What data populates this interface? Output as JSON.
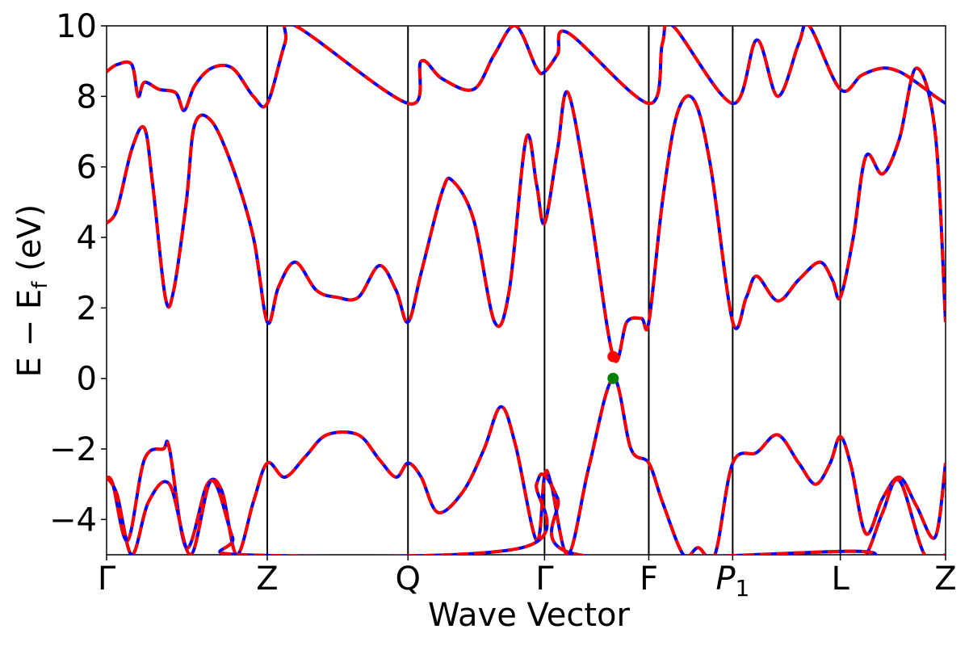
{
  "chart_data": {
    "type": "line",
    "title": "",
    "xlabel": "Wave Vector",
    "ylabel_parts": {
      "main": "E − E",
      "sub": "f",
      "unit": " (eV)"
    },
    "ylim": [
      -5,
      10
    ],
    "yticks": [
      -4,
      -2,
      0,
      2,
      4,
      6,
      8,
      10
    ],
    "ytick_labels": [
      "−4",
      "−2",
      "0",
      "2",
      "4",
      "6",
      "8",
      "10"
    ],
    "xlim": [
      0,
      4.0
    ],
    "kpoints": [
      {
        "label": "Γ",
        "sub": "",
        "italic": false,
        "x": 0.0
      },
      {
        "label": "Z",
        "sub": "",
        "italic": false,
        "x": 0.766
      },
      {
        "label": "Q",
        "sub": "",
        "italic": false,
        "x": 1.437
      },
      {
        "label": "Γ",
        "sub": "",
        "italic": false,
        "x": 2.088
      },
      {
        "label": "F",
        "sub": "",
        "italic": false,
        "x": 2.585
      },
      {
        "label": "P",
        "sub": "1",
        "italic": true,
        "x": 2.985
      },
      {
        "label": "L",
        "sub": "",
        "italic": false,
        "x": 3.498
      },
      {
        "label": "Z",
        "sub": "",
        "italic": false,
        "x": 4.0
      }
    ],
    "colors": {
      "series_a": "#ff0000",
      "series_b": "#0000ff",
      "vbm_marker": "#008000",
      "cbm_marker": "#ff0000",
      "kline": "#000000"
    },
    "markers": [
      {
        "name": "cbm",
        "x": 2.415,
        "y": 0.62
      },
      {
        "name": "vbm",
        "x": 2.415,
        "y": 0.0
      }
    ],
    "bands": [
      {
        "name": "v1",
        "points": [
          [
            0,
            -2.8
          ],
          [
            0.03,
            -3.0
          ],
          [
            0.1,
            -4.6
          ],
          [
            0.18,
            -2.3
          ],
          [
            0.27,
            -2.0
          ],
          [
            0.3,
            -2.0
          ],
          [
            0.38,
            -4.8
          ],
          [
            0.48,
            -3.0
          ],
          [
            0.55,
            -3.2
          ],
          [
            0.62,
            -5.0
          ],
          [
            0.7,
            -3.5
          ],
          [
            0.766,
            -2.4
          ],
          [
            0.85,
            -2.8
          ],
          [
            0.95,
            -2.2
          ],
          [
            1.05,
            -1.6
          ],
          [
            1.2,
            -1.6
          ],
          [
            1.3,
            -2.3
          ],
          [
            1.38,
            -2.8
          ],
          [
            1.437,
            -2.4
          ],
          [
            1.5,
            -2.8
          ],
          [
            1.58,
            -3.8
          ],
          [
            1.7,
            -3.2
          ],
          [
            1.8,
            -2.0
          ],
          [
            1.88,
            -0.8
          ],
          [
            1.95,
            -1.9
          ],
          [
            2.05,
            -4.6
          ],
          [
            2.088,
            -2.75
          ],
          [
            2.12,
            -3.0
          ],
          [
            2.2,
            -5.0
          ],
          [
            2.3,
            -2.5
          ],
          [
            2.415,
            0.0
          ],
          [
            2.5,
            -2.0
          ],
          [
            2.585,
            -2.4
          ],
          [
            2.65,
            -3.5
          ],
          [
            2.75,
            -5.0
          ],
          [
            2.82,
            -4.8
          ],
          [
            2.9,
            -5.0
          ],
          [
            2.985,
            -2.4
          ],
          [
            3.1,
            -2.1
          ],
          [
            3.2,
            -1.6
          ],
          [
            3.3,
            -2.4
          ],
          [
            3.38,
            -3.0
          ],
          [
            3.45,
            -2.4
          ],
          [
            3.498,
            -1.65
          ],
          [
            3.55,
            -2.5
          ],
          [
            3.62,
            -4.4
          ],
          [
            3.7,
            -3.4
          ],
          [
            3.78,
            -2.8
          ],
          [
            3.86,
            -3.6
          ],
          [
            3.95,
            -4.5
          ],
          [
            4.0,
            -2.4
          ]
        ]
      },
      {
        "name": "v2",
        "points": [
          [
            0,
            -2.8
          ],
          [
            0.05,
            -3.3
          ],
          [
            0.12,
            -5.0
          ],
          [
            0.2,
            -3.5
          ],
          [
            0.3,
            -3.0
          ],
          [
            0.4,
            -5.0
          ],
          [
            0.5,
            -2.9
          ],
          [
            0.6,
            -4.5
          ],
          [
            0.65,
            -5.0
          ],
          [
            1.98,
            -4.8
          ],
          [
            2.05,
            -3.0
          ],
          [
            2.088,
            -2.75
          ],
          [
            2.15,
            -3.4
          ],
          [
            2.25,
            -5.0
          ],
          [
            3.55,
            -4.9
          ],
          [
            3.62,
            -5.0
          ],
          [
            3.7,
            -3.8
          ],
          [
            3.78,
            -2.9
          ],
          [
            3.9,
            -5.0
          ],
          [
            4.0,
            -5.0
          ]
        ]
      },
      {
        "name": "c1",
        "points": [
          [
            0,
            4.4
          ],
          [
            0.05,
            4.8
          ],
          [
            0.12,
            6.5
          ],
          [
            0.18,
            7.1
          ],
          [
            0.22,
            5.5
          ],
          [
            0.28,
            2.3
          ],
          [
            0.32,
            2.5
          ],
          [
            0.38,
            5.0
          ],
          [
            0.42,
            7.2
          ],
          [
            0.5,
            7.3
          ],
          [
            0.6,
            6.0
          ],
          [
            0.7,
            4.0
          ],
          [
            0.766,
            1.6
          ],
          [
            0.82,
            2.6
          ],
          [
            0.9,
            3.3
          ],
          [
            1.0,
            2.5
          ],
          [
            1.1,
            2.3
          ],
          [
            1.2,
            2.3
          ],
          [
            1.3,
            3.2
          ],
          [
            1.38,
            2.5
          ],
          [
            1.437,
            1.6
          ],
          [
            1.5,
            3.0
          ],
          [
            1.6,
            5.3
          ],
          [
            1.65,
            5.6
          ],
          [
            1.75,
            4.5
          ],
          [
            1.85,
            1.6
          ],
          [
            1.92,
            2.5
          ],
          [
            2.0,
            6.8
          ],
          [
            2.05,
            5.5
          ],
          [
            2.088,
            4.4
          ],
          [
            2.15,
            6.5
          ],
          [
            2.2,
            8.1
          ],
          [
            2.3,
            5.0
          ],
          [
            2.415,
            0.62
          ],
          [
            2.48,
            1.6
          ],
          [
            2.55,
            1.7
          ],
          [
            2.585,
            1.6
          ],
          [
            2.65,
            5.0
          ],
          [
            2.72,
            7.5
          ],
          [
            2.8,
            7.9
          ],
          [
            2.88,
            6.0
          ],
          [
            2.985,
            1.6
          ],
          [
            3.05,
            2.3
          ],
          [
            3.1,
            2.9
          ],
          [
            3.2,
            2.2
          ],
          [
            3.3,
            2.8
          ],
          [
            3.4,
            3.3
          ],
          [
            3.46,
            2.8
          ],
          [
            3.498,
            2.3
          ],
          [
            3.56,
            4.0
          ],
          [
            3.62,
            6.3
          ],
          [
            3.7,
            5.8
          ],
          [
            3.78,
            6.8
          ],
          [
            3.86,
            8.8
          ],
          [
            3.95,
            7.0
          ],
          [
            4.0,
            1.6
          ]
        ]
      },
      {
        "name": "c2",
        "points": [
          [
            0,
            8.7
          ],
          [
            0.05,
            8.9
          ],
          [
            0.12,
            8.9
          ],
          [
            0.15,
            8.0
          ],
          [
            0.18,
            8.4
          ],
          [
            0.25,
            8.2
          ],
          [
            0.33,
            8.1
          ],
          [
            0.37,
            7.6
          ],
          [
            0.42,
            8.3
          ],
          [
            0.5,
            8.8
          ],
          [
            0.6,
            8.8
          ],
          [
            0.7,
            8.0
          ],
          [
            0.766,
            7.8
          ],
          [
            0.85,
            9.5
          ],
          [
            0.9,
            10.0
          ],
          [
            1.437,
            7.8
          ],
          [
            1.5,
            9.0
          ],
          [
            1.6,
            8.5
          ],
          [
            1.75,
            8.2
          ],
          [
            1.85,
            9.2
          ],
          [
            1.95,
            10.0
          ],
          [
            2.05,
            8.8
          ],
          [
            2.088,
            8.7
          ],
          [
            2.15,
            9.2
          ],
          [
            2.2,
            9.8
          ],
          [
            2.585,
            7.8
          ],
          [
            2.65,
            9.5
          ],
          [
            2.7,
            10.0
          ],
          [
            2.985,
            7.8
          ],
          [
            3.1,
            9.6
          ],
          [
            3.2,
            8.0
          ],
          [
            3.3,
            9.5
          ],
          [
            3.35,
            10.0
          ],
          [
            3.498,
            8.2
          ],
          [
            3.6,
            8.6
          ],
          [
            3.7,
            8.8
          ],
          [
            3.78,
            8.7
          ],
          [
            3.86,
            8.4
          ],
          [
            3.95,
            8.0
          ],
          [
            4.0,
            7.8
          ]
        ]
      }
    ]
  }
}
